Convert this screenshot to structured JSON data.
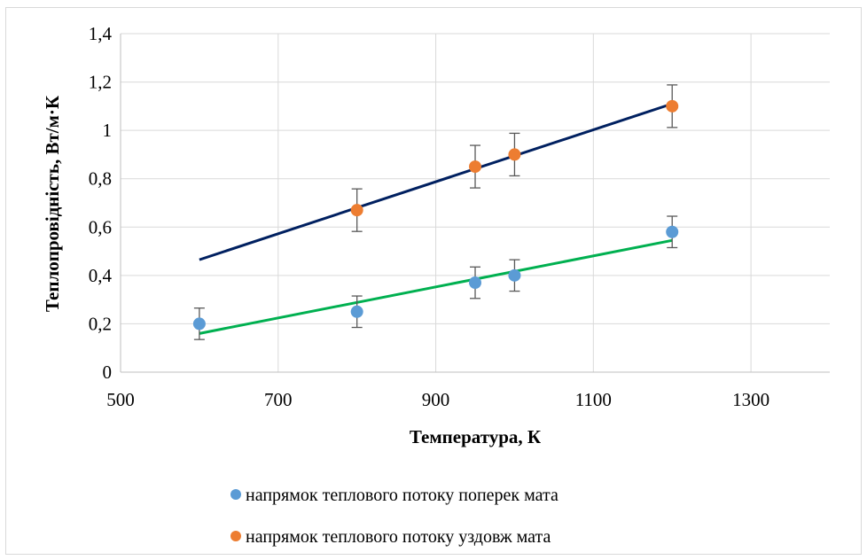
{
  "chart_data": {
    "type": "scatter",
    "xlabel": "Температура, К",
    "ylabel": "Теплопровідність, Вт/м·К",
    "xlim": [
      500,
      1400
    ],
    "ylim": [
      0,
      1.4
    ],
    "x_ticks": [
      500,
      700,
      900,
      1100,
      1300
    ],
    "x_tick_labels": [
      "500",
      "700",
      "900",
      "1100",
      "1300"
    ],
    "y_ticks": [
      0,
      0.2,
      0.4,
      0.6,
      0.8,
      1.0,
      1.2,
      1.4
    ],
    "y_tick_labels": [
      "0",
      "0,2",
      "0,4",
      "0,6",
      "0,8",
      "1",
      "1,2",
      "1,4"
    ],
    "grid": true,
    "legend_position": "bottom",
    "series": [
      {
        "name": "напрямок теплового потоку поперек мата",
        "color": "#5b9bd5",
        "x": [
          600,
          800,
          950,
          1000,
          1200
        ],
        "y": [
          0.2,
          0.25,
          0.37,
          0.4,
          0.58
        ],
        "error": [
          0.065,
          0.065,
          0.065,
          0.065,
          0.065
        ],
        "trendline": {
          "x": [
            600,
            1200
          ],
          "y": [
            0.16,
            0.545
          ],
          "color": "#00b050"
        }
      },
      {
        "name": "напрямок теплового потоку уздовж мата",
        "color": "#ed7d31",
        "x": [
          800,
          950,
          1000,
          1200
        ],
        "y": [
          0.67,
          0.85,
          0.9,
          1.1
        ],
        "error": [
          0.088,
          0.088,
          0.088,
          0.088
        ],
        "trendline": {
          "x": [
            600,
            1200
          ],
          "y": [
            0.465,
            1.11
          ],
          "color": "#002060"
        }
      }
    ]
  }
}
